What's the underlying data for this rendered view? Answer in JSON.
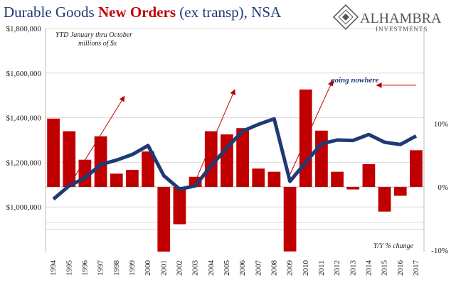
{
  "chart_data": {
    "type": "bar+line",
    "title_part1": "Durable Goods ",
    "title_part2": "New Orders",
    "title_part3": " (ex transp), NSA",
    "left_axis_note_1": "YTD January thru October",
    "left_axis_note_2": "millions of $s",
    "right_axis_note": "Y/Y % change",
    "callout": "going nowhere",
    "brand_name": "ALHAMBRA",
    "brand_sub": "INVESTMENTS",
    "categories": [
      "1994",
      "1995",
      "1996",
      "1997",
      "1998",
      "1999",
      "2000",
      "2001",
      "2002",
      "2003",
      "2004",
      "2005",
      "2006",
      "2007",
      "2008",
      "2009",
      "2010",
      "2011",
      "2012",
      "2013",
      "2014",
      "2015",
      "2016",
      "2017"
    ],
    "left_axis": {
      "min": 800000,
      "max": 1800000,
      "ticks": [
        "$1,000,000",
        "$1,200,000",
        "$1,400,000",
        "$1,600,000",
        "$1,800,000"
      ],
      "tick_values": [
        1000000,
        1200000,
        1400000,
        1600000,
        1800000
      ]
    },
    "right_axis": {
      "min": -10,
      "max": 25,
      "ticks": [
        "-10%",
        "0%",
        "10%"
      ],
      "tick_values": [
        -10,
        0,
        10
      ]
    },
    "series": [
      {
        "name": "",
        "kind": "line",
        "axis": "left",
        "color": "#1f3a75",
        "values": [
          1035000,
          1095000,
          1130000,
          1190000,
          1210000,
          1235000,
          1275000,
          1140000,
          1080000,
          1095000,
          1185000,
          1265000,
          1340000,
          1370000,
          1395000,
          1115000,
          1200000,
          1283000,
          1300000,
          1298000,
          1325000,
          1290000,
          1280000,
          1318000
        ]
      },
      {
        "name": "",
        "kind": "bar",
        "axis": "right",
        "color": "#c00000",
        "values": [
          10.8,
          8.8,
          4.3,
          8.0,
          2.1,
          2.7,
          5.6,
          -10.4,
          -5.9,
          1.6,
          8.8,
          8.3,
          9.3,
          2.9,
          2.4,
          -10.2,
          15.4,
          8.9,
          2.4,
          -0.4,
          3.6,
          -3.9,
          -1.4,
          5.8
        ]
      }
    ],
    "arrows_color": "#c00000",
    "grid": true
  }
}
